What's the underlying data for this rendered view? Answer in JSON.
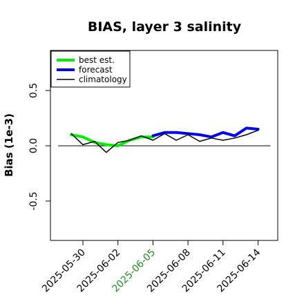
{
  "chart_data": {
    "type": "line",
    "title": "BIAS, layer 3 salinity",
    "xlabel": "",
    "ylabel": "Bias (1e-3)",
    "ylim": [
      -0.85,
      0.85
    ],
    "yticks": [
      -0.5,
      0.0,
      0.5
    ],
    "ytick_labels": [
      "-0.5",
      "0.0",
      "0.5"
    ],
    "xticks": [
      "2025-05-30",
      "2025-06-02",
      "2025-06-05",
      "2025-06-08",
      "2025-06-11",
      "2025-06-14"
    ],
    "xtick_colors": [
      "#000000",
      "#000000",
      "#228b22",
      "#000000",
      "#000000",
      "#000000"
    ],
    "xlim": [
      "2025-05-27",
      "2025-06-15"
    ],
    "reference_line_y": 0.0,
    "grid": false,
    "legend_position": "top-left",
    "series": [
      {
        "name": "best est.",
        "color": "#00ee00",
        "x": [
          "2025-05-29",
          "2025-05-30",
          "2025-05-31",
          "2025-06-01",
          "2025-06-02",
          "2025-06-03",
          "2025-06-04",
          "2025-06-05"
        ],
        "y": [
          0.1,
          0.08,
          0.03,
          0.01,
          0.0,
          0.05,
          0.08,
          0.08
        ]
      },
      {
        "name": "forecast",
        "color": "#0000ee",
        "x": [
          "2025-06-05",
          "2025-06-06",
          "2025-06-07",
          "2025-06-08",
          "2025-06-09",
          "2025-06-10",
          "2025-06-11",
          "2025-06-12",
          "2025-06-13",
          "2025-06-14"
        ],
        "y": [
          0.09,
          0.12,
          0.12,
          0.11,
          0.1,
          0.08,
          0.12,
          0.09,
          0.16,
          0.15
        ]
      },
      {
        "name": "climatology",
        "color": "#000000",
        "x": [
          "2025-05-29",
          "2025-05-30",
          "2025-05-31",
          "2025-06-01",
          "2025-06-02",
          "2025-06-03",
          "2025-06-04",
          "2025-06-05",
          "2025-06-06",
          "2025-06-07",
          "2025-06-08",
          "2025-06-09",
          "2025-06-10",
          "2025-06-11",
          "2025-06-12",
          "2025-06-13",
          "2025-06-14"
        ],
        "y": [
          0.11,
          0.01,
          0.04,
          -0.06,
          0.03,
          0.05,
          0.09,
          0.05,
          0.11,
          0.05,
          0.1,
          0.04,
          0.07,
          0.05,
          0.07,
          0.1,
          0.14
        ]
      }
    ]
  }
}
